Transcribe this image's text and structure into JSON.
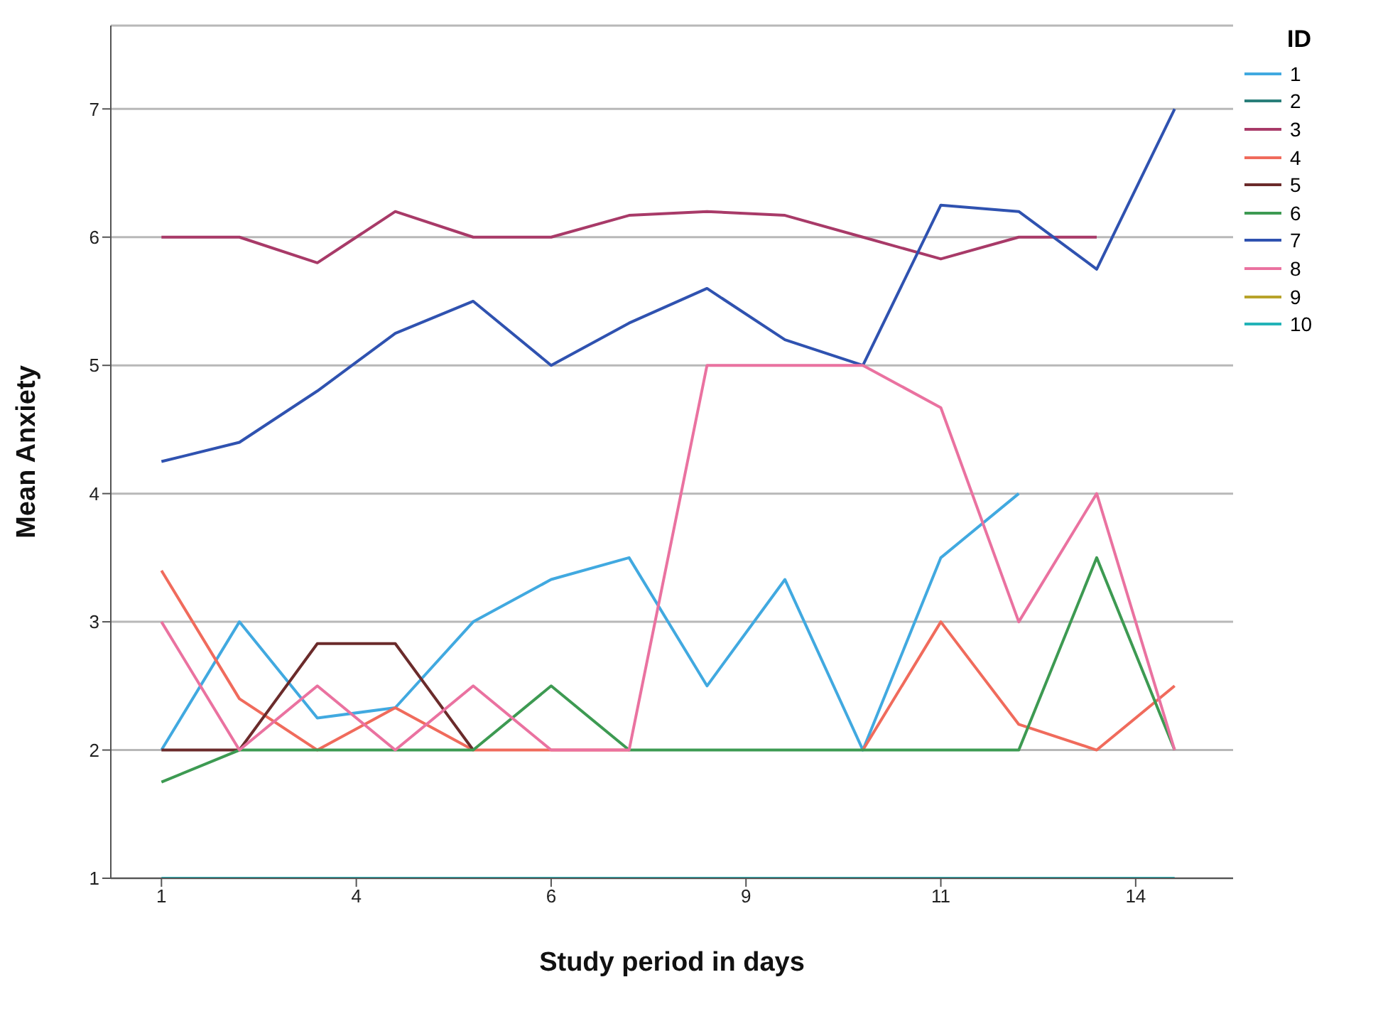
{
  "chart_data": {
    "type": "line",
    "xlabel": "Study period in days",
    "ylabel": "Mean Anxiety",
    "legend_title": "ID",
    "legend": "top right",
    "grid": "y",
    "marker": "none",
    "line_style": "solid",
    "x": [
      1,
      2,
      3,
      4,
      5,
      6,
      7,
      8,
      9,
      10,
      11,
      12,
      13,
      14
    ],
    "xlim": [
      0.35,
      14.75
    ],
    "xticks": [
      {
        "value": 1,
        "label": "1"
      },
      {
        "value": 3.5,
        "label": "4"
      },
      {
        "value": 6,
        "label": "6"
      },
      {
        "value": 8.5,
        "label": "9"
      },
      {
        "value": 11,
        "label": "11"
      },
      {
        "value": 13.5,
        "label": "14"
      }
    ],
    "ylim": [
      1,
      7.65
    ],
    "yticks": [
      1,
      2,
      3,
      4,
      5,
      6,
      7
    ],
    "series": [
      {
        "name": "1",
        "color": "#41a9e0",
        "values": [
          2,
          3,
          2.25,
          2.33,
          3,
          3.33,
          3.5,
          2.5,
          3.33,
          2,
          3.5,
          4,
          null,
          null
        ]
      },
      {
        "name": "2",
        "color": "#2a7f7a",
        "values": [
          null,
          null,
          null,
          null,
          null,
          null,
          null,
          null,
          null,
          null,
          null,
          null,
          null,
          null
        ]
      },
      {
        "name": "3",
        "color": "#a83a68",
        "values": [
          6,
          6,
          5.8,
          6.2,
          6,
          6,
          6.17,
          6.2,
          6.17,
          6,
          5.83,
          6,
          6,
          null
        ]
      },
      {
        "name": "4",
        "color": "#f06b5c",
        "values": [
          3.4,
          2.4,
          2,
          2.33,
          2,
          2,
          2,
          null,
          null,
          2,
          3,
          2.2,
          2,
          2.5
        ]
      },
      {
        "name": "5",
        "color": "#6b2b2b",
        "values": [
          2,
          2,
          2.83,
          2.83,
          2,
          null,
          null,
          null,
          null,
          null,
          null,
          null,
          null,
          null
        ]
      },
      {
        "name": "6",
        "color": "#3d9a52",
        "values": [
          1.75,
          2,
          2,
          2,
          2,
          2.5,
          2,
          2,
          2,
          2,
          2,
          2,
          3.5,
          2
        ]
      },
      {
        "name": "7",
        "color": "#2f52b0",
        "values": [
          4.25,
          4.4,
          4.8,
          5.25,
          5.5,
          5,
          5.33,
          5.6,
          5.2,
          5,
          6.25,
          6.2,
          5.75,
          7
        ]
      },
      {
        "name": "8",
        "color": "#ea72a0",
        "values": [
          3,
          2,
          2.5,
          2,
          2.5,
          2,
          2,
          5,
          5,
          5,
          4.67,
          3,
          4,
          2
        ]
      },
      {
        "name": "9",
        "color": "#b8a32a",
        "values": [
          null,
          null,
          null,
          null,
          null,
          null,
          null,
          null,
          null,
          null,
          null,
          null,
          null,
          null
        ]
      },
      {
        "name": "10",
        "color": "#22b3b8",
        "values": [
          1,
          1,
          1,
          1,
          1,
          1,
          1,
          1,
          1,
          1,
          1,
          1,
          1,
          1
        ]
      }
    ]
  }
}
